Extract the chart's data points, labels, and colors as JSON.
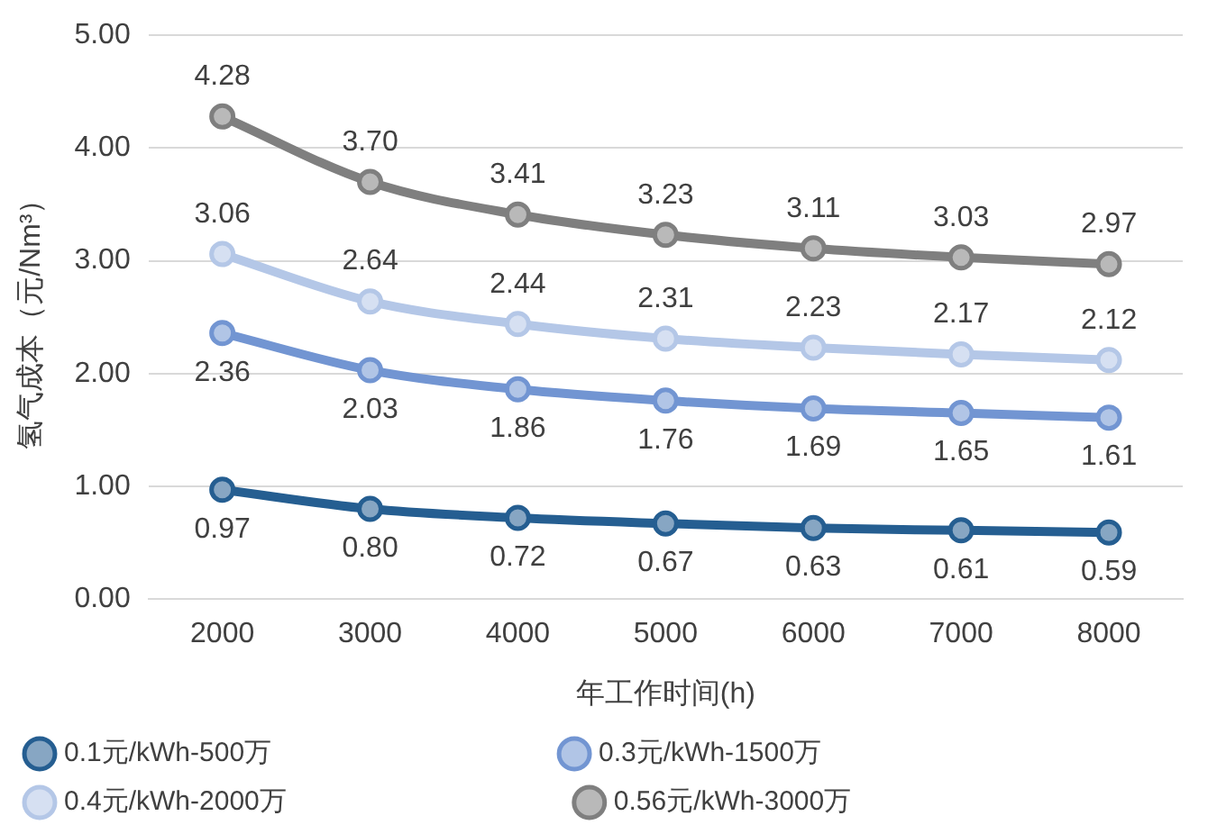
{
  "chart_data": {
    "type": "line",
    "xlabel": "年工作时间(h)",
    "ylabel": "氢气成本（元/Nm³）",
    "categories": [
      "2000",
      "3000",
      "4000",
      "5000",
      "6000",
      "7000",
      "8000"
    ],
    "ylim": [
      0,
      5
    ],
    "yticks": [
      {
        "value": 0,
        "label": "0.00"
      },
      {
        "value": 1,
        "label": "1.00"
      },
      {
        "value": 2,
        "label": "2.00"
      },
      {
        "value": 3,
        "label": "3.00"
      },
      {
        "value": 4,
        "label": "4.00"
      },
      {
        "value": 5,
        "label": "5.00"
      }
    ],
    "grid": "y",
    "legend": "bottom",
    "marker": "circle",
    "line_style": "solid",
    "series": [
      {
        "name": "0.1元/kWh-500万",
        "color": "#255e91",
        "values": [
          0.97,
          0.8,
          0.72,
          0.67,
          0.63,
          0.61,
          0.59
        ],
        "value_labels": [
          "0.97",
          "0.80",
          "0.72",
          "0.67",
          "0.63",
          "0.61",
          "0.59"
        ]
      },
      {
        "name": "0.3元/kWh-1500万",
        "color": "#7295d2",
        "values": [
          2.36,
          2.03,
          1.86,
          1.76,
          1.69,
          1.65,
          1.61
        ],
        "value_labels": [
          "2.36",
          "2.03",
          "1.86",
          "1.76",
          "1.69",
          "1.65",
          "1.61"
        ]
      },
      {
        "name": "0.4元/kWh-2000万",
        "color": "#b4c7e7",
        "values": [
          3.06,
          2.64,
          2.44,
          2.31,
          2.23,
          2.17,
          2.12
        ],
        "value_labels": [
          "3.06",
          "2.64",
          "2.44",
          "2.31",
          "2.23",
          "2.17",
          "2.12"
        ]
      },
      {
        "name": "0.56元/kWh-3000万",
        "color": "#7f7f7f",
        "values": [
          4.28,
          3.7,
          3.41,
          3.23,
          3.11,
          3.03,
          2.97
        ],
        "value_labels": [
          "4.28",
          "3.70",
          "3.41",
          "3.23",
          "3.11",
          "3.03",
          "2.97"
        ]
      }
    ]
  }
}
